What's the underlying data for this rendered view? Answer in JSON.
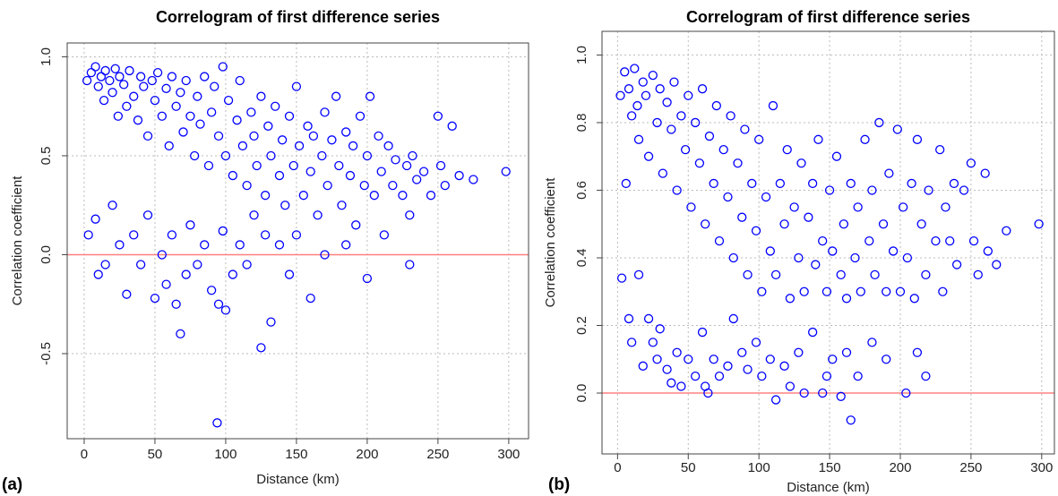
{
  "chart_data": [
    {
      "type": "scatter",
      "title": "Correlogram of first difference series",
      "panel_label": "(a)",
      "x_label": "Distance (km)",
      "y_label": "Correlation coefficient",
      "color": "#0000ff",
      "xlim": [
        -12,
        314
      ],
      "ylim": [
        -0.93,
        1.07
      ],
      "xticks": [
        0,
        50,
        100,
        150,
        200,
        250,
        300
      ],
      "yticks": [
        {
          "value": -0.5,
          "label": "-0.5"
        },
        {
          "value": 0,
          "label": "0.0"
        },
        {
          "value": 0.5,
          "label": "0.5"
        },
        {
          "value": 1,
          "label": "1.0"
        }
      ],
      "grid": true,
      "reference_line": {
        "y": 0,
        "color": "#ff8080"
      },
      "x": [
        2,
        5,
        8,
        10,
        12,
        14,
        15,
        18,
        20,
        22,
        24,
        25,
        28,
        30,
        32,
        35,
        38,
        40,
        42,
        45,
        48,
        50,
        52,
        55,
        58,
        60,
        62,
        65,
        68,
        70,
        72,
        75,
        78,
        80,
        82,
        85,
        88,
        90,
        92,
        95,
        98,
        100,
        102,
        105,
        108,
        110,
        112,
        115,
        118,
        120,
        122,
        125,
        128,
        130,
        132,
        135,
        138,
        140,
        142,
        145,
        148,
        150,
        152,
        155,
        158,
        160,
        162,
        165,
        168,
        170,
        172,
        175,
        178,
        180,
        182,
        185,
        188,
        190,
        192,
        195,
        198,
        200,
        202,
        205,
        208,
        210,
        212,
        215,
        218,
        220,
        225,
        228,
        230,
        232,
        235,
        240,
        245,
        250,
        252,
        255,
        260,
        265,
        275,
        298,
        3,
        8,
        10,
        15,
        20,
        25,
        30,
        35,
        40,
        45,
        50,
        55,
        58,
        62,
        65,
        68,
        72,
        75,
        80,
        85,
        90,
        94,
        95,
        98,
        100,
        105,
        110,
        115,
        120,
        125,
        128,
        132,
        138,
        145,
        150,
        160,
        170,
        185,
        200,
        230
      ],
      "y": [
        0.88,
        0.92,
        0.95,
        0.85,
        0.9,
        0.78,
        0.93,
        0.88,
        0.82,
        0.94,
        0.7,
        0.9,
        0.86,
        0.75,
        0.93,
        0.8,
        0.68,
        0.9,
        0.85,
        0.6,
        0.88,
        0.78,
        0.92,
        0.7,
        0.84,
        0.55,
        0.9,
        0.75,
        0.82,
        0.62,
        0.88,
        0.7,
        0.5,
        0.8,
        0.66,
        0.9,
        0.45,
        0.72,
        0.85,
        0.6,
        0.95,
        0.5,
        0.78,
        0.4,
        0.68,
        0.88,
        0.55,
        0.35,
        0.72,
        0.6,
        0.45,
        0.8,
        0.3,
        0.65,
        0.5,
        0.75,
        0.4,
        0.58,
        0.25,
        0.7,
        0.45,
        0.85,
        0.55,
        0.3,
        0.65,
        0.42,
        0.6,
        0.2,
        0.5,
        0.72,
        0.35,
        0.58,
        0.8,
        0.45,
        0.25,
        0.62,
        0.4,
        0.55,
        0.15,
        0.7,
        0.35,
        0.5,
        0.8,
        0.3,
        0.6,
        0.42,
        0.1,
        0.55,
        0.35,
        0.48,
        0.3,
        0.45,
        0.2,
        0.5,
        0.38,
        0.42,
        0.3,
        0.7,
        0.45,
        0.35,
        0.65,
        0.4,
        0.38,
        0.42,
        0.1,
        0.18,
        -0.1,
        -0.05,
        0.25,
        0.05,
        -0.2,
        0.1,
        -0.05,
        0.2,
        -0.22,
        0,
        -0.15,
        0.1,
        -0.25,
        -0.4,
        -0.1,
        0.15,
        -0.05,
        0.05,
        -0.18,
        -0.85,
        -0.25,
        0.12,
        -0.28,
        -0.1,
        0.05,
        -0.05,
        0.2,
        -0.47,
        0.1,
        -0.34,
        0.05,
        -0.1,
        0.1,
        -0.22,
        0,
        0.05,
        -0.12,
        -0.05
      ]
    },
    {
      "type": "scatter",
      "title": "Correlogram of first difference series",
      "panel_label": "(b)",
      "x_label": "Distance (km)",
      "y_label": "Correlation coefficient",
      "color": "#0000ff",
      "xlim": [
        -11,
        309
      ],
      "ylim": [
        -0.18,
        1.07
      ],
      "xticks": [
        0,
        50,
        100,
        150,
        200,
        250,
        300
      ],
      "yticks": [
        {
          "value": 0,
          "label": "0.0"
        },
        {
          "value": 0.2,
          "label": "0.2"
        },
        {
          "value": 0.4,
          "label": "0.4"
        },
        {
          "value": 0.6,
          "label": "0.6"
        },
        {
          "value": 0.8,
          "label": "0.8"
        },
        {
          "value": 1,
          "label": "1.0"
        }
      ],
      "grid": true,
      "reference_line": {
        "y": 0,
        "color": "#ff8080"
      },
      "x": [
        2,
        5,
        8,
        10,
        12,
        14,
        15,
        18,
        20,
        22,
        25,
        28,
        30,
        32,
        35,
        38,
        40,
        42,
        45,
        48,
        50,
        52,
        55,
        58,
        60,
        62,
        65,
        68,
        70,
        72,
        75,
        78,
        80,
        82,
        85,
        88,
        90,
        92,
        95,
        98,
        100,
        102,
        105,
        108,
        110,
        112,
        115,
        118,
        120,
        122,
        125,
        128,
        130,
        132,
        135,
        138,
        140,
        142,
        145,
        148,
        150,
        152,
        155,
        158,
        160,
        162,
        165,
        168,
        170,
        172,
        175,
        178,
        180,
        182,
        185,
        188,
        190,
        192,
        195,
        198,
        200,
        202,
        205,
        208,
        210,
        212,
        215,
        218,
        220,
        225,
        228,
        230,
        232,
        235,
        238,
        240,
        245,
        250,
        252,
        255,
        260,
        262,
        268,
        275,
        298,
        3,
        6,
        8,
        10,
        15,
        18,
        22,
        25,
        28,
        30,
        35,
        38,
        42,
        45,
        50,
        55,
        60,
        62,
        64,
        68,
        72,
        78,
        82,
        88,
        92,
        98,
        102,
        108,
        112,
        118,
        122,
        128,
        132,
        138,
        145,
        148,
        152,
        158,
        162,
        165,
        170,
        180,
        190,
        204,
        212,
        218
      ],
      "y": [
        0.88,
        0.95,
        0.9,
        0.82,
        0.96,
        0.85,
        0.75,
        0.92,
        0.88,
        0.7,
        0.94,
        0.8,
        0.9,
        0.65,
        0.86,
        0.78,
        0.92,
        0.6,
        0.82,
        0.72,
        0.88,
        0.55,
        0.8,
        0.68,
        0.9,
        0.5,
        0.76,
        0.62,
        0.85,
        0.45,
        0.72,
        0.58,
        0.82,
        0.4,
        0.68,
        0.52,
        0.78,
        0.35,
        0.62,
        0.48,
        0.75,
        0.3,
        0.58,
        0.42,
        0.85,
        0.35,
        0.62,
        0.5,
        0.72,
        0.28,
        0.55,
        0.4,
        0.68,
        0.3,
        0.52,
        0.62,
        0.38,
        0.75,
        0.45,
        0.3,
        0.6,
        0.42,
        0.7,
        0.35,
        0.5,
        0.28,
        0.62,
        0.4,
        0.55,
        0.3,
        0.75,
        0.45,
        0.6,
        0.35,
        0.8,
        0.5,
        0.3,
        0.65,
        0.42,
        0.78,
        0.3,
        0.55,
        0.4,
        0.62,
        0.28,
        0.75,
        0.5,
        0.35,
        0.6,
        0.45,
        0.72,
        0.3,
        0.55,
        0.45,
        0.62,
        0.38,
        0.6,
        0.68,
        0.45,
        0.35,
        0.65,
        0.42,
        0.38,
        0.48,
        0.5,
        0.34,
        0.62,
        0.22,
        0.15,
        0.35,
        0.08,
        0.22,
        0.15,
        0.1,
        0.19,
        0.07,
        0.03,
        0.12,
        0.02,
        0.1,
        0.05,
        0.18,
        0.02,
        0,
        0.1,
        0.05,
        0.08,
        0.22,
        0.12,
        0.07,
        0.15,
        0.05,
        0.1,
        -0.02,
        0.08,
        0.02,
        0.12,
        0,
        0.18,
        0,
        0.05,
        0.1,
        -0.01,
        0.12,
        -0.08,
        0.05,
        0.15,
        0.1,
        0,
        0.12,
        0.05
      ]
    }
  ]
}
